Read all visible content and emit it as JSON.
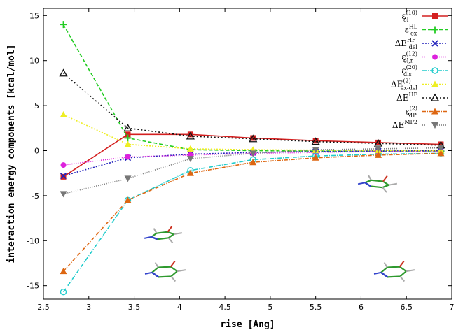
{
  "chart_data": {
    "type": "line",
    "xlabel": "rise [Ang]",
    "ylabel": "interaction energy components [kcal/mol]",
    "xlim": [
      2.5,
      7
    ],
    "ylim": [
      -16.5,
      15.8
    ],
    "x_ticks": [
      "2.5",
      "3",
      "3.5",
      "4",
      "4.5",
      "5",
      "5.5",
      "6",
      "6.5",
      "7"
    ],
    "y_ticks": [
      "-15",
      "-10",
      "-5",
      "0",
      "5",
      "10",
      "15"
    ],
    "grid": false,
    "legend_position": "top-right",
    "x": [
      2.72,
      3.43,
      4.12,
      4.81,
      5.5,
      6.19,
      6.88
    ],
    "series": [
      {
        "name": "ε_el(10)",
        "base": "ε",
        "sub": "el",
        "sup": "(10)",
        "color": "#d42020",
        "dash": "",
        "marker": "square",
        "values": [
          -2.9,
          1.8,
          1.8,
          1.4,
          1.1,
          0.9,
          0.7
        ]
      },
      {
        "name": "ε_ex^HL",
        "base": "ε",
        "sub": "ex",
        "sup": "HL",
        "color": "#22cc22",
        "dash": "5,3",
        "marker": "plus",
        "values": [
          14.0,
          1.4,
          0.1,
          0.0,
          -0.05,
          -0.05,
          -0.05
        ]
      },
      {
        "name": "ΔE_del^HF",
        "base": "ΔE",
        "sub": "del",
        "sup": "HF",
        "color": "#2222bb",
        "dash": "2,2",
        "marker": "x",
        "values": [
          -2.8,
          -0.8,
          -0.4,
          -0.2,
          -0.1,
          -0.05,
          -0.02
        ]
      },
      {
        "name": "ε_el,r^(12)",
        "base": "ε",
        "sub": "el,r",
        "sup": "(12)",
        "color": "#dd22dd",
        "dash": "1,2",
        "marker": "circle",
        "values": [
          -1.6,
          -0.7,
          -0.5,
          -0.3,
          -0.2,
          -0.1,
          -0.1
        ]
      },
      {
        "name": "ε_dis^(20)",
        "base": "ε",
        "sub": "dis",
        "sup": "(20)",
        "color": "#22cccc",
        "dash": "6,2,1,2",
        "marker": "circle-open",
        "values": [
          -15.7,
          -5.5,
          -2.2,
          -1.0,
          -0.6,
          -0.4,
          -0.3
        ]
      },
      {
        "name": "ΔE_ex-del^(2)",
        "base": "ΔE",
        "sub": "ex-del",
        "sup": "(2)",
        "color": "#eeee22",
        "dash": "2,2",
        "marker": "triangle",
        "values": [
          4.0,
          0.7,
          0.2,
          0.1,
          0.05,
          0.02,
          0.0
        ]
      },
      {
        "name": "ΔE^HF",
        "base": "ΔE",
        "sub": "",
        "sup": "HF",
        "color": "#111111",
        "dash": "2,3",
        "marker": "triangle-open",
        "values": [
          8.6,
          2.5,
          1.6,
          1.3,
          1.0,
          0.8,
          0.6
        ]
      },
      {
        "name": "ε_MP^(2)",
        "base": "ε",
        "sub": "MP",
        "sup": "(2)",
        "color": "#dd6611",
        "dash": "5,2,1,2",
        "marker": "triangle",
        "values": [
          -13.4,
          -5.5,
          -2.5,
          -1.3,
          -0.8,
          -0.5,
          -0.3
        ]
      },
      {
        "name": "ΔE^MP2",
        "base": "ΔE",
        "sub": "",
        "sup": "MP2",
        "color": "#777777",
        "dash": "1,2",
        "marker": "triangle-down",
        "values": [
          -4.8,
          -3.1,
          -0.9,
          -0.3,
          0.1,
          0.2,
          0.3
        ]
      }
    ]
  }
}
